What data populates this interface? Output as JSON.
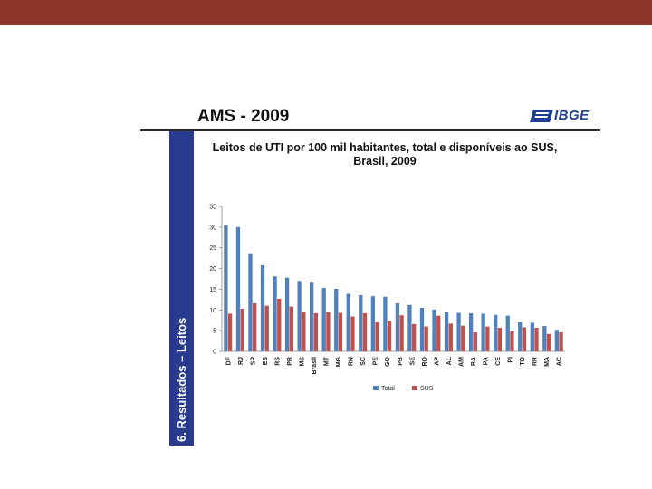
{
  "slide": {
    "title": "AMS - 2009",
    "logo_text": "IBGE",
    "side_label": "6. Resultados – Leitos",
    "colors": {
      "top_bar": "#8b3428",
      "side_panel": "#2a3a8c",
      "logo": "#1f3f8f"
    }
  },
  "chart_data": {
    "type": "bar",
    "title": "Leitos de UTI por 100 mil habitantes, total e disponíveis ao SUS, Brasil, 2009",
    "title_lines": [
      "Leitos de UTI por 100 mil habitantes, total e disponíveis ao SUS,",
      "Brasil, 2009"
    ],
    "categories": [
      "DF",
      "RJ",
      "SP",
      "ES",
      "RS",
      "PR",
      "MS",
      "Brasil",
      "MT",
      "MG",
      "RN",
      "SC",
      "PE",
      "GO",
      "PB",
      "SE",
      "RO",
      "AP",
      "AL",
      "AM",
      "BA",
      "PA",
      "CE",
      "PI",
      "TO",
      "RR",
      "MA",
      "AC"
    ],
    "series": [
      {
        "name": "Total",
        "color": "#4f81bd",
        "values": [
          30.6,
          30.0,
          23.7,
          20.8,
          18.1,
          17.8,
          17.0,
          16.8,
          15.3,
          15.1,
          13.9,
          13.6,
          13.3,
          13.2,
          11.6,
          11.2,
          10.5,
          10.1,
          9.4,
          9.3,
          9.2,
          9.1,
          8.8,
          8.6,
          7.0,
          6.9,
          6.1,
          5.2
        ]
      },
      {
        "name": "SUS",
        "color": "#c0504d",
        "values": [
          9.1,
          10.3,
          11.6,
          11.0,
          12.7,
          10.8,
          9.6,
          9.2,
          9.5,
          9.3,
          8.4,
          9.2,
          7.0,
          7.3,
          8.7,
          6.6,
          6.0,
          8.6,
          6.7,
          6.2,
          4.6,
          6.0,
          5.7,
          4.9,
          5.8,
          5.7,
          4.2,
          4.6
        ]
      }
    ],
    "ylim": [
      0,
      35
    ],
    "yticks": [
      0,
      5,
      10,
      15,
      20,
      25,
      30,
      35
    ],
    "legend": "bottom",
    "grid": false
  }
}
